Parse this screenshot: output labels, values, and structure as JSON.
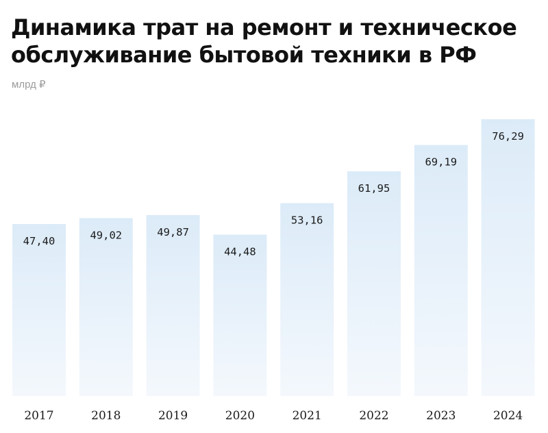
{
  "chart_data": {
    "type": "bar",
    "title": "Динамика трат на ремонт и техническое обслуживание бытовой техники в РФ",
    "subtitle": "млрд ₽",
    "categories": [
      "2017",
      "2018",
      "2019",
      "2020",
      "2021",
      "2022",
      "2023",
      "2024"
    ],
    "values": [
      47.4,
      49.02,
      49.87,
      44.48,
      53.16,
      61.95,
      69.19,
      76.29
    ],
    "value_labels": [
      "47,40",
      "49,02",
      "49,87",
      "44,48",
      "53,16",
      "61,95",
      "69,19",
      "76,29"
    ],
    "ylim": [
      0,
      80
    ],
    "grid": false,
    "legend": "none",
    "colors": {
      "bar_top": "#dcebf8",
      "bar_bottom": "#f4f8fd",
      "text": "#1a1a1a",
      "subtitle": "#9a9a9a"
    }
  }
}
